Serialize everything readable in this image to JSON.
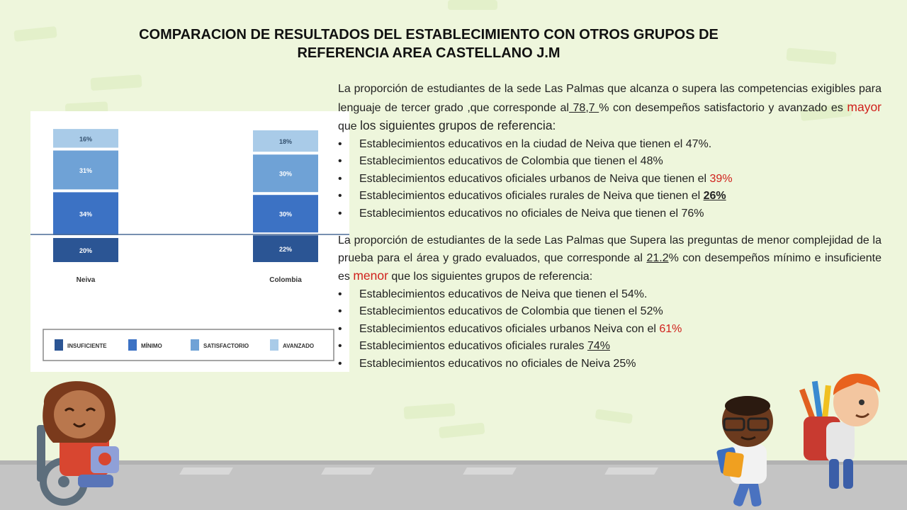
{
  "slide": {
    "title_line1": "COMPARACION DE RESULTADOS DEL ESTABLECIMIENTO CON  OTROS GRUPOS DE",
    "title_line2": "REFERENCIA  AREA  CASTELLANO  J.M"
  },
  "paragraph1": {
    "t1": "La proporción de estudiantes    de la sede  Las Palmas  que alcanza o supera las competencias exigibles para lenguaje de tercer grado ,que corresponde al",
    "value": " 78,7 ",
    "t2": "% con desempeños satisfactorio y avanzado es ",
    "keyword": "mayor",
    "t3": " que ",
    "t4": "los siguientes grupos de referencia:"
  },
  "list1": [
    {
      "text": "Establecimientos educativos   en la ciudad de Neiva que  tienen el 47%.",
      "highlight": ""
    },
    {
      "text": "Establecimientos educativos de    Colombia que tienen el  48%",
      "highlight": ""
    },
    {
      "text": "Establecimientos educativos  oficiales urbanos de Neiva que tienen el ",
      "highlight": "39%"
    },
    {
      "text": "Establecimientos educativos  oficiales rurales  de Neiva que tienen  el ",
      "highlight": "26%"
    },
    {
      "text": "Establecimientos educativos   no oficiales  de Neiva que tienen el 76%",
      "highlight": ""
    }
  ],
  "paragraph2": {
    "t1": " La proporción de estudiantes de la sede  Las Palmas que Supera las preguntas de menor complejidad de la prueba para el área y grado evaluados, que    corresponde al ",
    "value": "21.2",
    "t2": "% con desempeños mínimo e insuficiente es ",
    "keyword": "menor",
    "t3": "   que los siguientes grupos de referencia:"
  },
  "list2": [
    {
      "text": "Establecimientos educativos  de Neiva  que tienen el 54%.",
      "highlight": ""
    },
    {
      "text": "Establecimientos educativos  de  Colombia  que tienen el 52%",
      "highlight": ""
    },
    {
      "text": "Establecimientos educativos   oficiales urbanos  Neiva  con       el  ",
      "highlight": "61%"
    },
    {
      "text": "Establecimientos educativos  oficiales rurales  ",
      "highlight": "74%"
    },
    {
      "text": "Establecimientos educativos  no oficiales de Neiva  25%",
      "highlight": ""
    }
  ],
  "bullet": "•",
  "colors": {
    "insuficiente": "#2b5594",
    "minimo": "#3c72c4",
    "satisfactorio": "#6fa2d6",
    "avanzado": "#a9cbe8",
    "red": "#d0211c",
    "background": "#eef6dc"
  },
  "chart_data": {
    "type": "bar",
    "stacked": true,
    "categories": [
      "Neiva",
      "Colombia"
    ],
    "series": [
      {
        "name": "INSUFICIENTE",
        "values": [
          20,
          22
        ]
      },
      {
        "name": "MÍNIMO",
        "values": [
          34,
          30
        ]
      },
      {
        "name": "SATISFACTORIO",
        "values": [
          31,
          30
        ]
      },
      {
        "name": "AVANZADO",
        "values": [
          16,
          18
        ]
      }
    ],
    "value_suffix": "%",
    "legend_position": "bottom"
  }
}
